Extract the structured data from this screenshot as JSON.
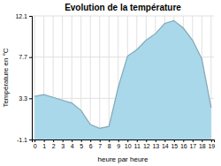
{
  "chart_data": {
    "type": "area",
    "title": "Evolution de la température",
    "xlabel": "heure par heure",
    "ylabel": "Température en °C",
    "x": [
      0,
      1,
      2,
      3,
      4,
      5,
      6,
      7,
      8,
      9,
      10,
      11,
      12,
      13,
      14,
      15,
      16,
      17,
      18,
      19
    ],
    "values": [
      3.5,
      3.7,
      3.4,
      3.1,
      2.8,
      2.0,
      0.5,
      0.1,
      0.3,
      4.5,
      7.8,
      8.5,
      9.5,
      10.2,
      11.3,
      11.6,
      10.8,
      9.5,
      7.5,
      2.3
    ],
    "xlim": [
      -0.3,
      19.3
    ],
    "ylim": [
      -1.1,
      12.1
    ],
    "xticks": [
      0,
      1,
      2,
      3,
      4,
      5,
      6,
      7,
      8,
      9,
      10,
      11,
      12,
      13,
      14,
      15,
      16,
      17,
      18,
      19
    ],
    "yticks": [
      -1.1,
      3.3,
      7.7,
      12.1
    ],
    "color": "#a8d8ea",
    "grid": true
  }
}
